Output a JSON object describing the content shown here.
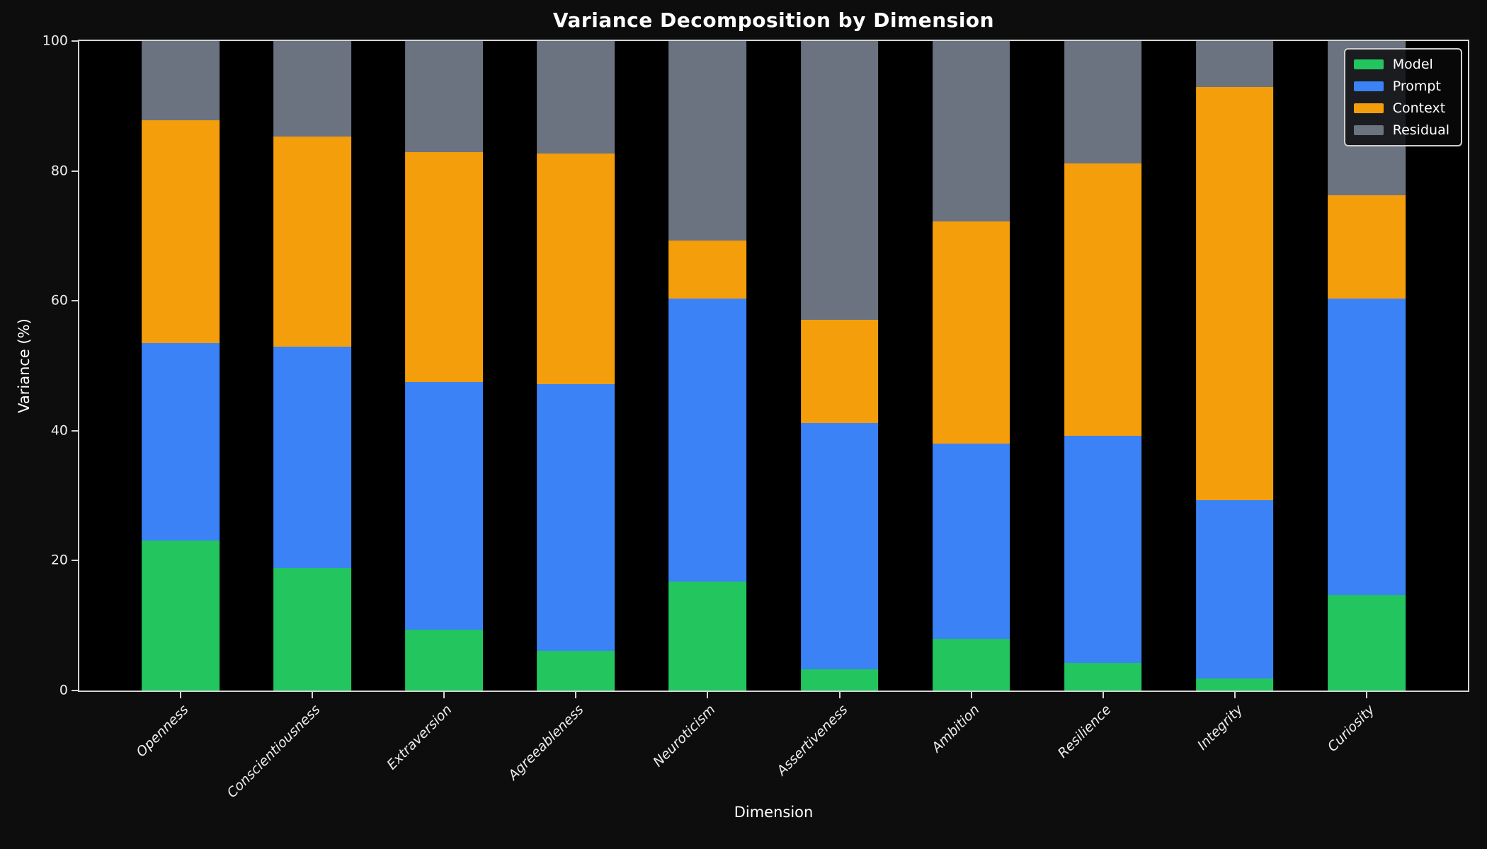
{
  "chart_data": {
    "type": "bar",
    "stacked": true,
    "title": "Variance Decomposition by Dimension",
    "xlabel": "Dimension",
    "ylabel": "Variance (%)",
    "categories": [
      "Openness",
      "Conscientiousness",
      "Extraversion",
      "Agreeableness",
      "Neuroticism",
      "Assertiveness",
      "Ambition",
      "Resilience",
      "Integrity",
      "Curiosity"
    ],
    "series": [
      {
        "name": "Model",
        "color": "#22c55e",
        "values": [
          23.1,
          18.9,
          9.4,
          6.1,
          16.8,
          3.3,
          8.0,
          4.2,
          1.9,
          14.7
        ]
      },
      {
        "name": "Prompt",
        "color": "#3b82f6",
        "values": [
          30.4,
          34.0,
          38.1,
          41.1,
          43.5,
          37.9,
          30.0,
          35.0,
          27.4,
          45.7
        ]
      },
      {
        "name": "Context",
        "color": "#f59e0b",
        "values": [
          34.3,
          32.4,
          35.4,
          35.5,
          9.0,
          15.9,
          34.2,
          42.0,
          63.6,
          15.9
        ]
      },
      {
        "name": "Residual",
        "color": "#6b7280",
        "values": [
          12.2,
          14.7,
          17.1,
          17.3,
          30.7,
          42.9,
          27.8,
          18.8,
          7.1,
          23.7
        ]
      }
    ],
    "ylim": [
      0,
      100
    ],
    "yticks": [
      0,
      20,
      40,
      60,
      80,
      100
    ],
    "grid": false,
    "legend_position": "upper right",
    "legend_labels": [
      "Model",
      "Prompt",
      "Context",
      "Residual"
    ]
  },
  "style_colors": {
    "figure_background": "#0d0d0d",
    "axes_background": "#000000",
    "spine": "#d4d4d4",
    "tick_text": "#ededed",
    "title_text": "#ffffff"
  }
}
